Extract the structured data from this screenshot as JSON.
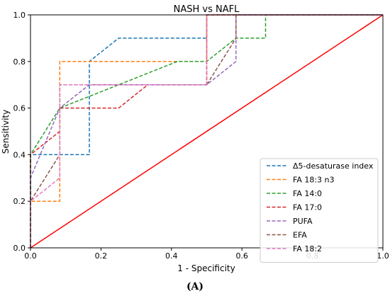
{
  "caption": "(A)",
  "chart_data": {
    "type": "line",
    "title": "NASH vs NAFL",
    "xlabel": "1 - Specificity",
    "ylabel": "Sensitivity",
    "xlim": [
      0,
      1
    ],
    "ylim": [
      0,
      1
    ],
    "xticks": [
      "0.0",
      "0.2",
      "0.4",
      "0.6",
      "0.8",
      "1.0"
    ],
    "yticks": [
      "0.0",
      "0.2",
      "0.4",
      "0.6",
      "0.8",
      "1.0"
    ],
    "grid": false,
    "legend_position": "lower-right",
    "reference_line": {
      "x": [
        0,
        1
      ],
      "y": [
        0,
        1
      ],
      "color": "#ff0000",
      "style": "solid"
    },
    "series": [
      {
        "name": "Δ5-desaturase index",
        "color": "#1f77b4",
        "style": "dashed",
        "x": [
          0,
          0,
          0.167,
          0.167,
          0.25,
          0.5,
          0.5,
          1.0
        ],
        "y": [
          0,
          0.4,
          0.4,
          0.8,
          0.9,
          0.9,
          1.0,
          1.0
        ]
      },
      {
        "name": "FA 18:3 n3",
        "color": "#ff7f0e",
        "style": "dashed",
        "x": [
          0,
          0,
          0.083,
          0.083,
          0.5,
          0.5,
          1.0
        ],
        "y": [
          0,
          0.2,
          0.2,
          0.8,
          0.8,
          1.0,
          1.0
        ]
      },
      {
        "name": "FA 14:0",
        "color": "#2ca02c",
        "style": "dashed",
        "x": [
          0,
          0,
          0.083,
          0.25,
          0.417,
          0.5,
          0.583,
          0.667,
          0.667,
          1.0
        ],
        "y": [
          0,
          0.4,
          0.6,
          0.7,
          0.8,
          0.8,
          0.9,
          0.9,
          1.0,
          1.0
        ]
      },
      {
        "name": "FA 17:0",
        "color": "#d62728",
        "style": "dashed",
        "x": [
          0,
          0,
          0.083,
          0.083,
          0.25,
          0.333,
          0.5,
          0.5,
          1.0
        ],
        "y": [
          0,
          0.4,
          0.5,
          0.6,
          0.6,
          0.7,
          0.7,
          1.0,
          1.0
        ]
      },
      {
        "name": "PUFA",
        "color": "#9467bd",
        "style": "dashed",
        "x": [
          0,
          0,
          0.083,
          0.167,
          0.5,
          0.583,
          0.583,
          1.0
        ],
        "y": [
          0,
          0.3,
          0.6,
          0.7,
          0.7,
          0.8,
          1.0,
          1.0
        ]
      },
      {
        "name": "EFA",
        "color": "#8c564b",
        "style": "dashed",
        "x": [
          0,
          0,
          0.083,
          0.083,
          0.5,
          0.583,
          0.583,
          1.0
        ],
        "y": [
          0,
          0.2,
          0.4,
          0.7,
          0.7,
          0.9,
          1.0,
          1.0
        ]
      },
      {
        "name": "FA 18:2",
        "color": "#e377c2",
        "style": "dashed",
        "x": [
          0,
          0,
          0.083,
          0.083,
          0.5,
          0.5,
          1.0
        ],
        "y": [
          0,
          0.2,
          0.3,
          0.7,
          0.7,
          1.0,
          1.0
        ]
      }
    ]
  }
}
